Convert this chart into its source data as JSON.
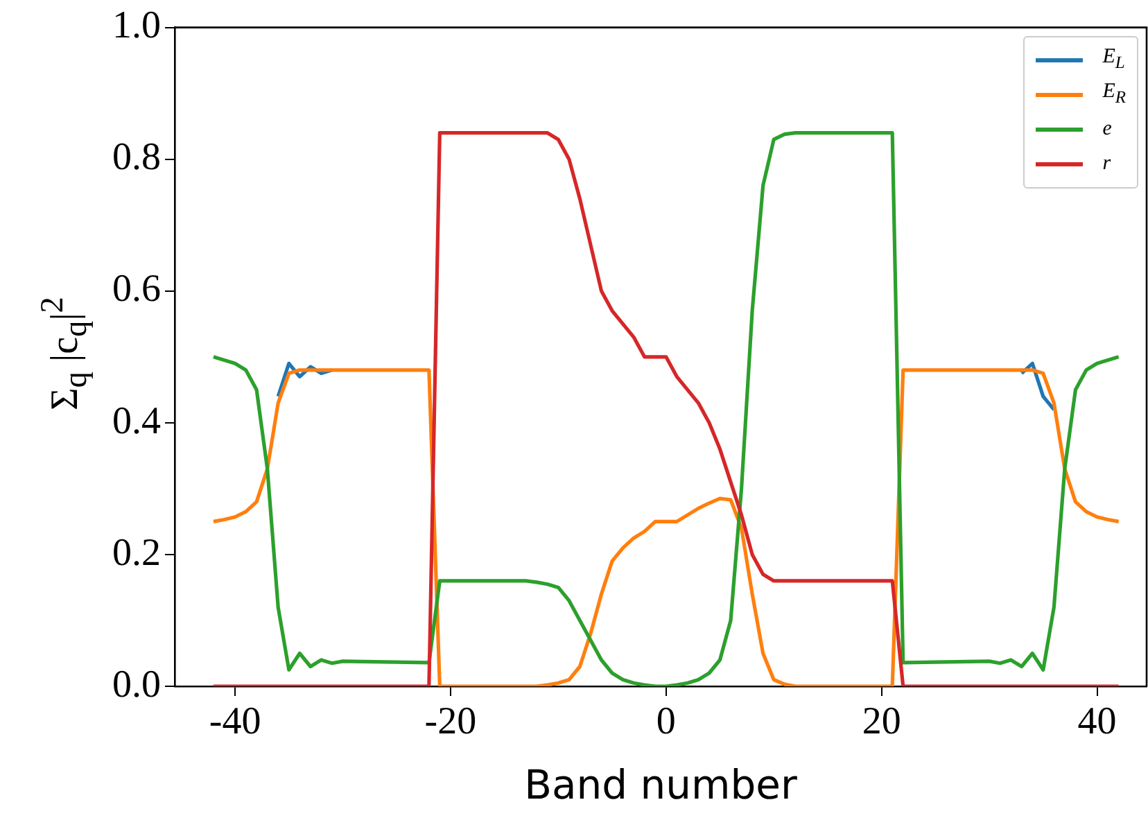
{
  "chart_data": {
    "type": "line",
    "xlabel": "Band number",
    "ylabel": "Σ$_{q}$ |c$_{q}$|$^{2}$",
    "xlim": [
      -45.6,
      44.6
    ],
    "ylim": [
      0,
      1
    ],
    "xticks": [
      -40,
      -20,
      0,
      20,
      40
    ],
    "yticks": [
      {
        "value": 0,
        "label": "0.0"
      },
      0.2,
      0.4,
      0.6,
      0.8,
      {
        "value": 1,
        "label": "1.0"
      }
    ],
    "grid": false,
    "legend": "top right",
    "marker": "none",
    "line_style": "solid",
    "series": [
      {
        "name": "E$_{L}$",
        "color": "#1f77b4",
        "x": [
          -36,
          -35,
          -34,
          -33,
          -32,
          -31,
          0,
          33,
          34,
          35,
          36
        ],
        "values": [
          0.44,
          0.49,
          0.47,
          0.485,
          0.475,
          0.48,
          null,
          0.475,
          0.49,
          0.44,
          0.42
        ]
      },
      {
        "name": "E$_{R}$",
        "color": "#ff7f0e",
        "x": [
          -42,
          -41,
          -40,
          -39,
          -38,
          -37,
          -36,
          -35,
          -34,
          -22,
          -21,
          -12,
          -11,
          -10,
          -9,
          -8,
          -7,
          -6,
          -5,
          -4,
          -3,
          -2,
          -1,
          0,
          1,
          2,
          3,
          4,
          5,
          6,
          7,
          8,
          9,
          10,
          11,
          12,
          21,
          22,
          34,
          35,
          36,
          37,
          38,
          39,
          40,
          41,
          42
        ],
        "values": [
          0.25,
          0.253,
          0.257,
          0.265,
          0.28,
          0.33,
          0.43,
          0.475,
          0.48,
          0.48,
          0,
          0,
          0.002,
          0.005,
          0.01,
          0.03,
          0.08,
          0.14,
          0.19,
          0.21,
          0.225,
          0.235,
          0.25,
          0.25,
          0.25,
          0.26,
          0.27,
          0.278,
          0.285,
          0.283,
          0.24,
          0.14,
          0.05,
          0.01,
          0.003,
          0,
          0,
          0.48,
          0.48,
          0.475,
          0.43,
          0.33,
          0.28,
          0.265,
          0.257,
          0.253,
          0.25
        ]
      },
      {
        "name": "e",
        "color": "#2ca02c",
        "x": [
          -42,
          -41,
          -40,
          -39,
          -38,
          -37,
          -36,
          -35,
          -34,
          -33,
          -32,
          -31,
          -30,
          -22,
          -21,
          -13,
          -12,
          -11,
          -10,
          -9,
          -8,
          -7,
          -6,
          -5,
          -4,
          -3,
          -2,
          -1,
          0,
          1,
          2,
          3,
          4,
          5,
          6,
          7,
          8,
          9,
          10,
          11,
          12,
          21,
          22,
          30,
          31,
          32,
          33,
          34,
          35,
          36,
          37,
          38,
          39,
          40,
          41,
          42
        ],
        "values": [
          0.5,
          0.495,
          0.49,
          0.48,
          0.45,
          0.33,
          0.12,
          0.025,
          0.05,
          0.03,
          0.04,
          0.035,
          0.038,
          0.036,
          0.16,
          0.16,
          0.158,
          0.155,
          0.15,
          0.13,
          0.1,
          0.07,
          0.04,
          0.02,
          0.01,
          0.005,
          0.002,
          0,
          0,
          0.002,
          0.005,
          0.01,
          0.02,
          0.04,
          0.1,
          0.3,
          0.57,
          0.76,
          0.83,
          0.838,
          0.84,
          0.84,
          0.036,
          0.038,
          0.035,
          0.04,
          0.03,
          0.05,
          0.025,
          0.12,
          0.33,
          0.45,
          0.48,
          0.49,
          0.495,
          0.5
        ]
      },
      {
        "name": "r",
        "color": "#d62728",
        "x": [
          -42,
          -22,
          -21,
          -11,
          -10,
          -9,
          -8,
          -7,
          -6,
          -5,
          -4,
          -3,
          -2,
          -1,
          0,
          1,
          2,
          3,
          4,
          5,
          6,
          7,
          8,
          9,
          10,
          21,
          22,
          42
        ],
        "values": [
          0,
          0,
          0.84,
          0.84,
          0.83,
          0.8,
          0.74,
          0.67,
          0.6,
          0.57,
          0.55,
          0.53,
          0.5,
          0.5,
          0.5,
          0.47,
          0.45,
          0.43,
          0.4,
          0.36,
          0.31,
          0.26,
          0.2,
          0.17,
          0.16,
          0.16,
          0,
          0
        ]
      }
    ]
  }
}
